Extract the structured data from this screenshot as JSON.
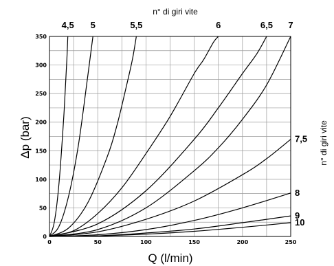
{
  "chart_data": {
    "type": "line",
    "title_top": "n° di giri vite",
    "title_right": "n° di giri vite",
    "xlabel": "Q (l/min)",
    "ylabel": "Δp (bar)",
    "xlim": [
      0,
      250
    ],
    "ylim": [
      0,
      350
    ],
    "xticks": [
      0,
      50,
      100,
      150,
      200,
      250
    ],
    "yticks": [
      0,
      50,
      100,
      150,
      200,
      250,
      300,
      350
    ],
    "grid": true,
    "series": [
      {
        "name": "4,5",
        "points": [
          [
            0,
            0
          ],
          [
            5,
            25
          ],
          [
            10,
            95
          ],
          [
            15,
            215
          ],
          [
            18,
            310
          ],
          [
            19,
            350
          ]
        ]
      },
      {
        "name": "5",
        "points": [
          [
            0,
            0
          ],
          [
            10,
            18
          ],
          [
            20,
            72
          ],
          [
            30,
            160
          ],
          [
            40,
            285
          ],
          [
            45,
            350
          ]
        ]
      },
      {
        "name": "5,5",
        "points": [
          [
            0,
            0
          ],
          [
            20,
            15
          ],
          [
            40,
            60
          ],
          [
            60,
            140
          ],
          [
            70,
            195
          ],
          [
            80,
            265
          ],
          [
            86,
            310
          ],
          [
            90,
            350
          ]
        ]
      },
      {
        "name": "6",
        "points": [
          [
            0,
            0
          ],
          [
            25,
            10
          ],
          [
            50,
            40
          ],
          [
            75,
            85
          ],
          [
            100,
            145
          ],
          [
            125,
            210
          ],
          [
            150,
            285
          ],
          [
            160,
            310
          ],
          [
            170,
            340
          ],
          [
            175,
            350
          ]
        ]
      },
      {
        "name": "6,5",
        "points": [
          [
            0,
            0
          ],
          [
            50,
            22
          ],
          [
            100,
            80
          ],
          [
            150,
            170
          ],
          [
            175,
            225
          ],
          [
            200,
            285
          ],
          [
            215,
            320
          ],
          [
            225,
            350
          ]
        ]
      },
      {
        "name": "7",
        "points": [
          [
            0,
            0
          ],
          [
            50,
            12
          ],
          [
            100,
            50
          ],
          [
            150,
            115
          ],
          [
            175,
            155
          ],
          [
            200,
            205
          ],
          [
            225,
            265
          ],
          [
            250,
            350
          ]
        ]
      },
      {
        "name": "7,5",
        "points": [
          [
            0,
            0
          ],
          [
            50,
            8
          ],
          [
            100,
            30
          ],
          [
            150,
            62
          ],
          [
            200,
            108
          ],
          [
            225,
            136
          ],
          [
            250,
            170
          ]
        ]
      },
      {
        "name": "8",
        "points": [
          [
            0,
            0
          ],
          [
            50,
            3
          ],
          [
            100,
            12
          ],
          [
            150,
            28
          ],
          [
            200,
            50
          ],
          [
            250,
            76
          ]
        ]
      },
      {
        "name": "9",
        "points": [
          [
            0,
            0
          ],
          [
            50,
            1
          ],
          [
            100,
            6
          ],
          [
            150,
            13
          ],
          [
            200,
            24
          ],
          [
            250,
            36
          ]
        ]
      },
      {
        "name": "10",
        "points": [
          [
            0,
            0
          ],
          [
            50,
            1
          ],
          [
            100,
            4
          ],
          [
            150,
            9
          ],
          [
            200,
            16
          ],
          [
            250,
            24
          ]
        ]
      }
    ]
  }
}
